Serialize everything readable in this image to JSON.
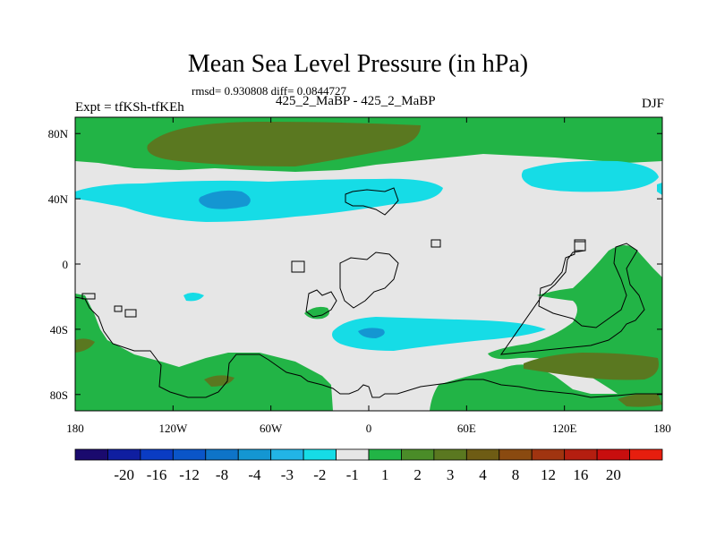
{
  "title": "Mean Sea Level Pressure (in hPa)",
  "stats": "rmsd= 0.930808 diff= 0.0844727",
  "experiment_label": "Expt = tfKSh-tfKEh",
  "comparison_label": "425_2_MaBP - 425_2_MaBP",
  "season": "DJF",
  "lat_ticks": [
    {
      "label": "80N",
      "lat": 80
    },
    {
      "label": "40N",
      "lat": 40
    },
    {
      "label": "0",
      "lat": 0
    },
    {
      "label": "40S",
      "lat": -40
    },
    {
      "label": "80S",
      "lat": -80
    }
  ],
  "lon_ticks": [
    {
      "label": "180",
      "lon": -180
    },
    {
      "label": "120W",
      "lon": -120
    },
    {
      "label": "60W",
      "lon": -60
    },
    {
      "label": "0",
      "lon": 0
    },
    {
      "label": "60E",
      "lon": 60
    },
    {
      "label": "120E",
      "lon": 120
    },
    {
      "label": "180",
      "lon": 180
    }
  ],
  "colorbar": {
    "colors": [
      "#1a0a6e",
      "#0f1ea0",
      "#0a3cc3",
      "#0a55c8",
      "#0e74c8",
      "#1496d2",
      "#22b4e6",
      "#16dce6",
      "#e6e6e6",
      "#22b446",
      "#4a8c28",
      "#5a7820",
      "#6e5c14",
      "#8a4a10",
      "#a03410",
      "#b41e10",
      "#c80e0e",
      "#e61e0e"
    ],
    "labels": [
      "-20",
      "-16",
      "-12",
      "-8",
      "-4",
      "-3",
      "-2",
      "-1",
      "1",
      "2",
      "3",
      "4",
      "8",
      "12",
      "16",
      "20"
    ]
  },
  "field_colors": {
    "neutral": "#e6e6e6",
    "green": "#22b446",
    "olive": "#5a7820",
    "cyan": "#16dce6",
    "blue": "#1496d2",
    "coast": "#000000"
  }
}
